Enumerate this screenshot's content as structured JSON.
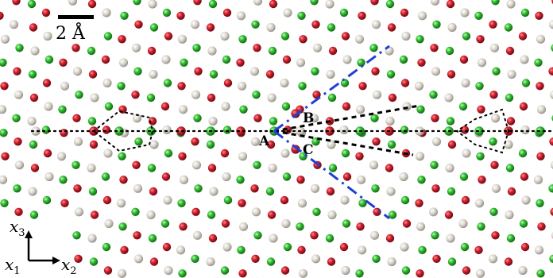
{
  "scale_bar": {
    "label": "2 Å"
  },
  "point_labels": {
    "a": "A",
    "b": "B",
    "c": "C"
  },
  "axes": {
    "vertical": "x3",
    "out_of_plane": "x1",
    "horizontal": "x2"
  },
  "colors": {
    "red_atom": "#c0182a",
    "green_atom": "#2fb52f",
    "grey_atom": "#cfcac0",
    "dashed_blue": "#1f3fd6",
    "dotted_black": "#000000"
  }
}
